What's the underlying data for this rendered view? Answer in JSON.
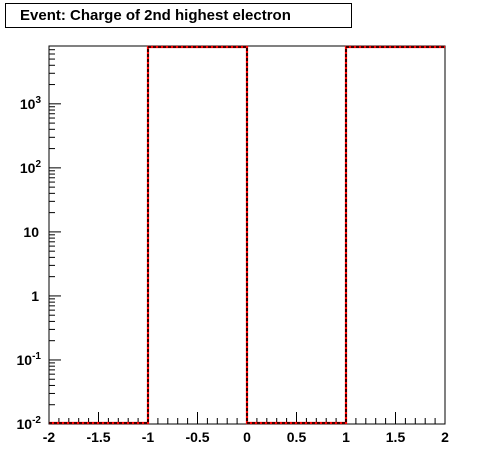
{
  "chart_data": {
    "type": "bar",
    "title": "Event: Charge of 2nd highest electron",
    "xlabel": "",
    "ylabel": "",
    "xlim": [
      -2,
      2
    ],
    "ylim": [
      0.01,
      8000
    ],
    "yscale": "log",
    "grid": false,
    "x_tick_labels": [
      "-2",
      "-1.5",
      "-1",
      "-0.5",
      "0",
      "0.5",
      "1",
      "1.5",
      "2"
    ],
    "y_tick_labels": [
      {
        "value": 0.01,
        "mantissa": "10",
        "exponent": "-2"
      },
      {
        "value": 0.1,
        "mantissa": "10",
        "exponent": "-1"
      },
      {
        "value": 1,
        "mantissa": "1",
        "exponent": ""
      },
      {
        "value": 10,
        "mantissa": "10",
        "exponent": ""
      },
      {
        "value": 100,
        "mantissa": "10",
        "exponent": "2"
      },
      {
        "value": 1000,
        "mantissa": "10",
        "exponent": "3"
      }
    ],
    "bins": [
      {
        "low": -2,
        "high": -1,
        "value": 0.01
      },
      {
        "low": -1,
        "high": 0,
        "value": 8000
      },
      {
        "low": 0,
        "high": 1,
        "value": 0.01
      },
      {
        "low": 1,
        "high": 2,
        "value": 8000
      }
    ],
    "series": [
      {
        "color": "#ff0000",
        "style": "solid"
      },
      {
        "color": "#000000",
        "style": "dashed"
      }
    ]
  }
}
